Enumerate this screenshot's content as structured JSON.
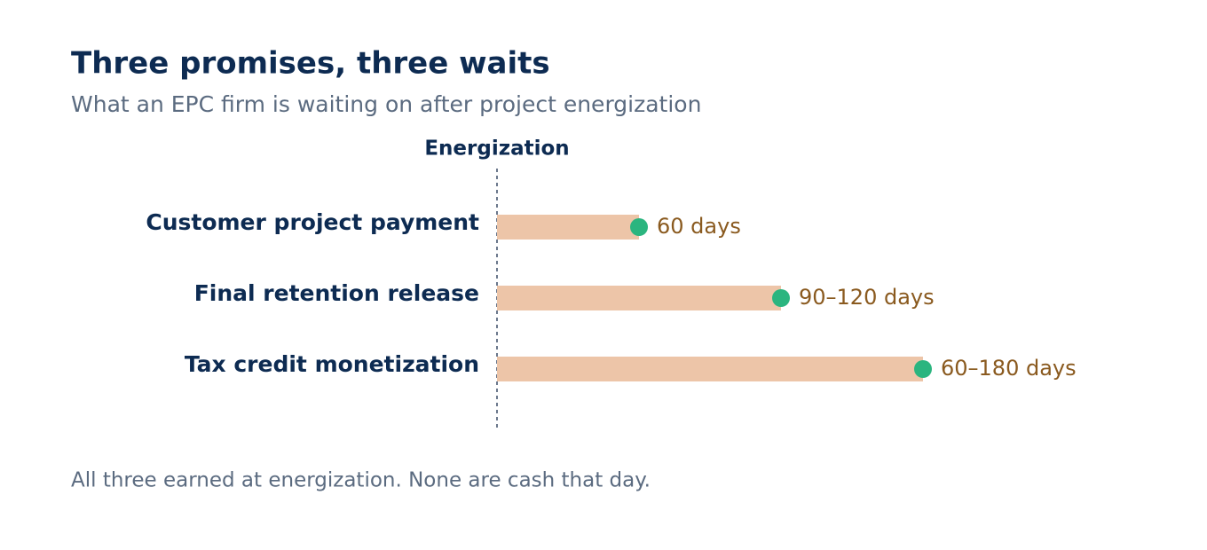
{
  "chart_data": {
    "type": "bar",
    "orientation": "horizontal",
    "title": "Three promises, three waits",
    "subtitle": "What an EPC firm is waiting on after project energization",
    "annotation": "Energization",
    "footnote": "All three earned at energization. None are cash that day.",
    "categories": [
      "Customer project payment",
      "Final retention release",
      "Tax credit monetization"
    ],
    "values": [
      60,
      120,
      180
    ],
    "value_labels": [
      "60 days",
      "90–120 days",
      "60–180 days"
    ],
    "xlim": [
      0,
      180
    ],
    "color": "#edc5a8",
    "marker_color": "#2bb57f"
  }
}
